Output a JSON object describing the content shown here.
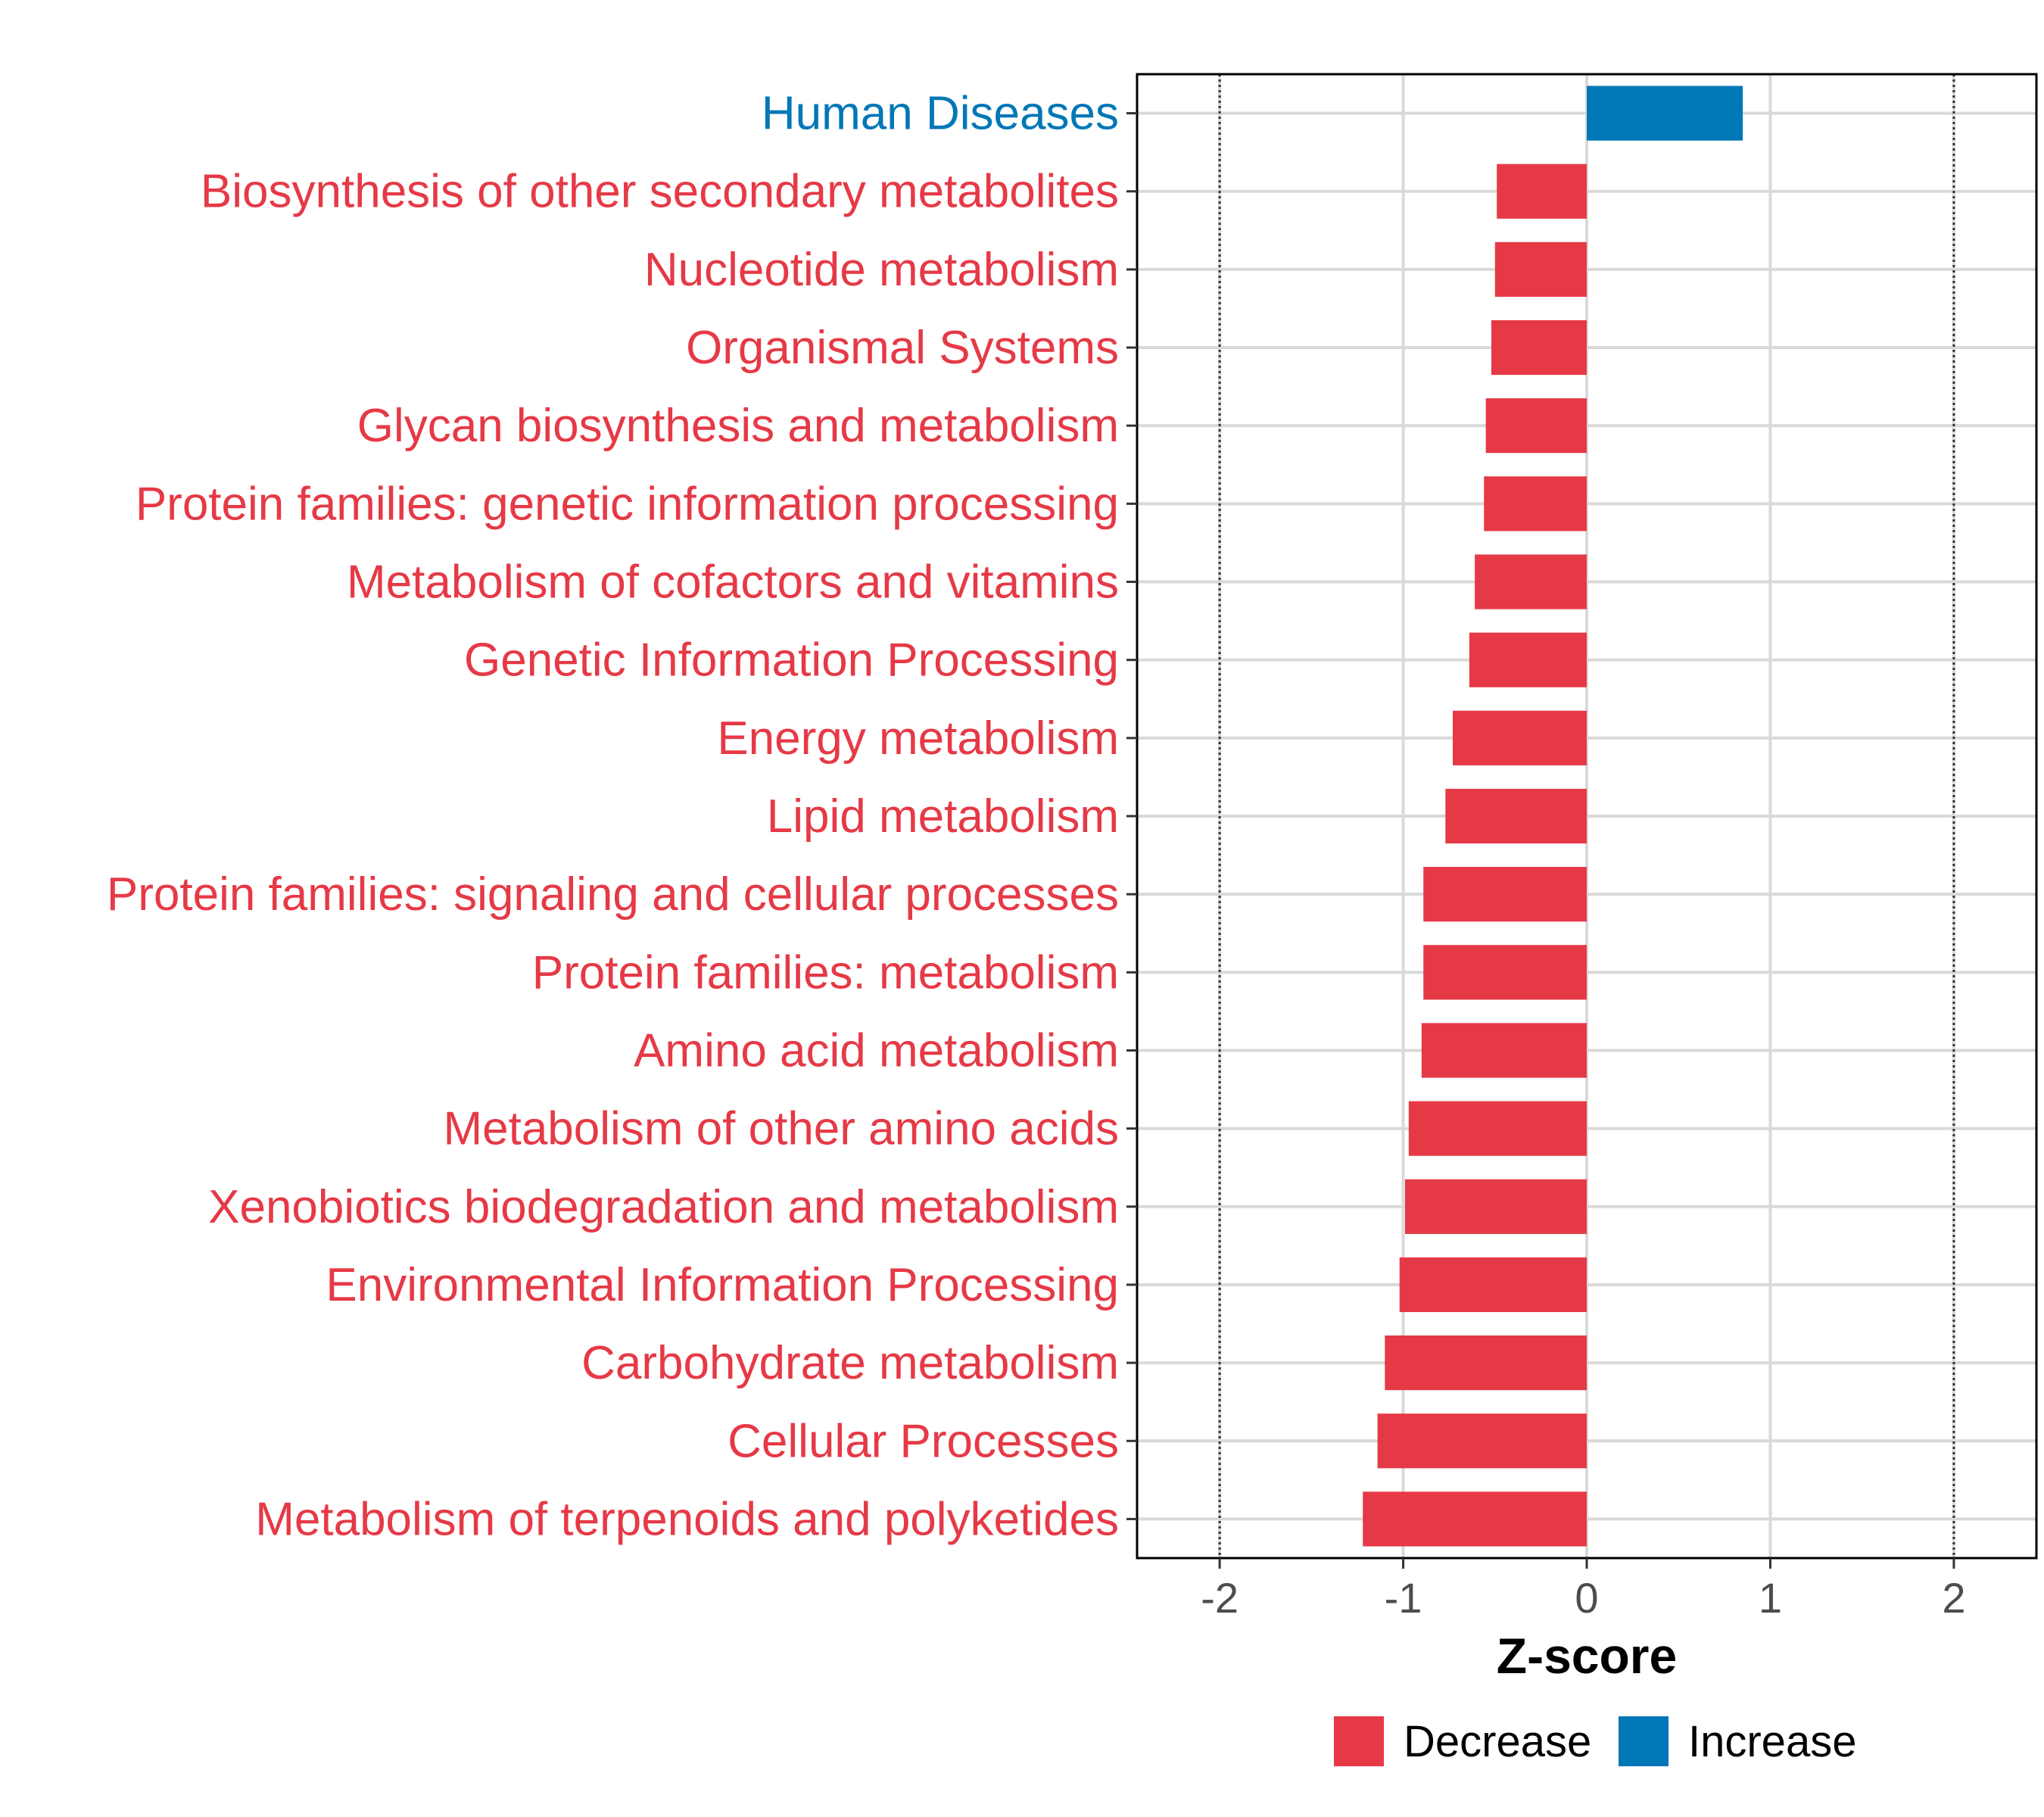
{
  "chart_data": {
    "type": "bar",
    "orientation": "horizontal",
    "title": "",
    "xlabel": "Z-score",
    "ylabel": "",
    "xlim": [
      -2.45,
      2.45
    ],
    "xticks": [
      -2,
      -1,
      0,
      1,
      2
    ],
    "xtick_labels": [
      "-2",
      "-1",
      "0",
      "1",
      "2"
    ],
    "reference_lines": [
      -2,
      2
    ],
    "grid": true,
    "categories": [
      "Human Diseases",
      "Biosynthesis of other secondary metabolites",
      "Nucleotide metabolism",
      "Organismal Systems",
      "Glycan biosynthesis and metabolism",
      "Protein families: genetic information processing",
      "Metabolism of cofactors and vitamins",
      "Genetic Information Processing",
      "Energy metabolism",
      "Lipid metabolism",
      "Protein families: signaling and cellular processes",
      "Protein families: metabolism",
      "Amino acid metabolism",
      "Metabolism of other amino acids",
      "Xenobiotics biodegradation and metabolism",
      "Environmental Information Processing",
      "Carbohydrate metabolism",
      "Cellular Processes",
      "Metabolism of terpenoids and polyketides"
    ],
    "values": [
      0.85,
      -0.49,
      -0.5,
      -0.52,
      -0.55,
      -0.56,
      -0.61,
      -0.64,
      -0.73,
      -0.77,
      -0.89,
      -0.89,
      -0.9,
      -0.97,
      -0.99,
      -1.02,
      -1.1,
      -1.14,
      -1.22
    ],
    "groups": [
      "Increase",
      "Decrease",
      "Decrease",
      "Decrease",
      "Decrease",
      "Decrease",
      "Decrease",
      "Decrease",
      "Decrease",
      "Decrease",
      "Decrease",
      "Decrease",
      "Decrease",
      "Decrease",
      "Decrease",
      "Decrease",
      "Decrease",
      "Decrease",
      "Decrease"
    ],
    "legend": {
      "position": "bottom",
      "items": [
        {
          "label": "Decrease",
          "color": "#e63946"
        },
        {
          "label": "Increase",
          "color": "#0077b6"
        }
      ]
    },
    "colors": {
      "Decrease": "#e63946",
      "Increase": "#0077b6"
    }
  }
}
